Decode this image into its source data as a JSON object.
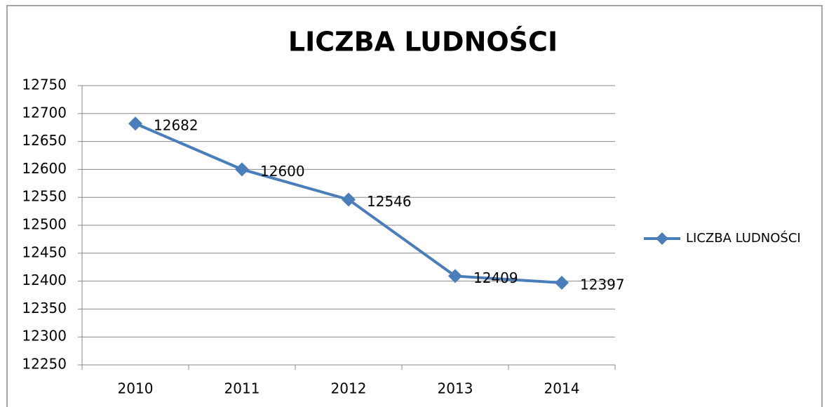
{
  "chart_data": {
    "type": "line",
    "title": "LICZBA LUDNOŚCI",
    "categories": [
      "2010",
      "2011",
      "2012",
      "2013",
      "2014"
    ],
    "series": [
      {
        "name": "LICZBA LUDNOŚCI",
        "color": "#4a7ebb",
        "values": [
          12682,
          12600,
          12546,
          12409,
          12397
        ]
      }
    ],
    "ylim": [
      12250,
      12750
    ],
    "yticks": [
      12250,
      12300,
      12350,
      12400,
      12450,
      12500,
      12550,
      12600,
      12650,
      12700,
      12750
    ],
    "grid": true,
    "legend": "right"
  }
}
